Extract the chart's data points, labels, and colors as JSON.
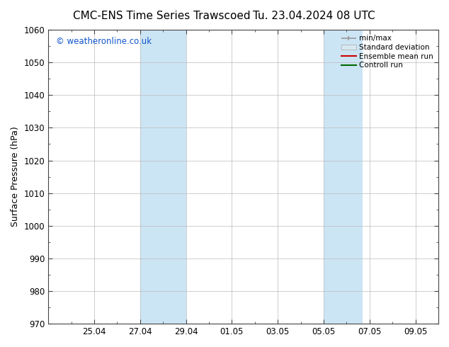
{
  "title": "CMC-ENS Time Series Trawscoed",
  "title2": "Tu. 23.04.2024 08 UTC",
  "ylabel": "Surface Pressure (hPa)",
  "ylim": [
    970,
    1060
  ],
  "yticks": [
    970,
    980,
    990,
    1000,
    1010,
    1020,
    1030,
    1040,
    1050,
    1060
  ],
  "xtick_positions": [
    2,
    4,
    6,
    8,
    10,
    12,
    14,
    16
  ],
  "xtick_labels": [
    "25.04",
    "27.04",
    "29.04",
    "01.05",
    "03.05",
    "05.05",
    "07.05",
    "09.05"
  ],
  "xlim": [
    0,
    17.0
  ],
  "shaded_regions": [
    {
      "x_start": 4.0,
      "x_end": 6.0
    },
    {
      "x_start": 12.0,
      "x_end": 13.7
    }
  ],
  "shade_color": "#cce5f5",
  "watermark": "© weatheronline.co.uk",
  "watermark_color": "#1155cc",
  "legend_labels": [
    "min/max",
    "Standard deviation",
    "Ensemble mean run",
    "Controll run"
  ],
  "legend_colors": [
    "#999999",
    "#cccccc",
    "#cc0000",
    "#006600"
  ],
  "background_color": "#ffffff",
  "plot_bg_color": "#ffffff",
  "grid_color": "#bbbbbb",
  "spine_color": "#444444",
  "title_fontsize": 11,
  "tick_fontsize": 8.5,
  "ylabel_fontsize": 9,
  "watermark_fontsize": 8.5,
  "legend_fontsize": 7.5
}
